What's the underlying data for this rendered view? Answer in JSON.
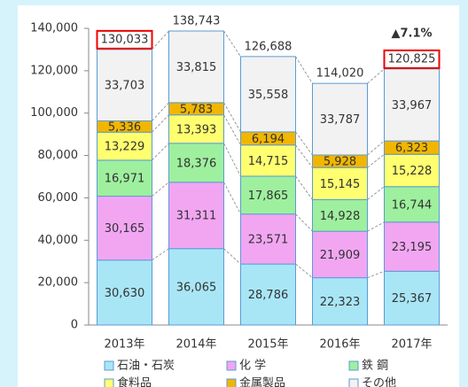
{
  "chart_data": {
    "type": "stacked-bar",
    "categories": [
      "2013年",
      "2014年",
      "2015年",
      "2016年",
      "2017年"
    ],
    "series": [
      {
        "name": "石油・石炭",
        "color": "#a8e6f6",
        "values": [
          30630,
          36065,
          28786,
          22323,
          25367
        ],
        "value_labels": [
          "30,630",
          "36,065",
          "28,786",
          "22,323",
          "25,367"
        ]
      },
      {
        "name": "化 学",
        "color": "#f2a6f2",
        "values": [
          30165,
          31311,
          23571,
          21909,
          23195
        ],
        "value_labels": [
          "30,165",
          "31,311",
          "23,571",
          "21,909",
          "23,195"
        ]
      },
      {
        "name": "鉄 鋼",
        "color": "#9ef09e",
        "values": [
          16971,
          18376,
          17865,
          14928,
          16744
        ],
        "value_labels": [
          "16,971",
          "18,376",
          "17,865",
          "14,928",
          "16,744"
        ]
      },
      {
        "name": "食料品",
        "color": "#ffff70",
        "values": [
          13229,
          13393,
          14715,
          15145,
          15228
        ],
        "value_labels": [
          "13,229",
          "13,393",
          "14,715",
          "15,145",
          "15,228"
        ]
      },
      {
        "name": "金属製品",
        "color": "#f2b600",
        "values": [
          5336,
          5783,
          6194,
          5928,
          6323
        ],
        "value_labels": [
          "5,336",
          "5,783",
          "6,194",
          "5,928",
          "6,323"
        ]
      },
      {
        "name": "その他",
        "color": "#f2f2f2",
        "values": [
          33703,
          33815,
          35558,
          33787,
          33967
        ],
        "value_labels": [
          "33,703",
          "33,815",
          "35,558",
          "33,787",
          "33,967"
        ]
      }
    ],
    "totals": [
      130033,
      138743,
      126688,
      114020,
      120825
    ],
    "total_labels": [
      "130,033",
      "138,743",
      "126,688",
      "114,020",
      "120,825"
    ],
    "total_boxed": [
      true,
      false,
      false,
      false,
      true
    ],
    "annotation": "▲7.1%",
    "ylim": [
      0,
      140000
    ],
    "yticks": [
      0,
      {
        "value": 20000,
        "label": "20,000"
      },
      {
        "value": 40000,
        "label": "40,000"
      },
      {
        "value": 60000,
        "label": "60,000"
      },
      {
        "value": 80000,
        "label": "80,000"
      },
      {
        "value": 100000,
        "label": "100,000"
      },
      {
        "value": 120000,
        "label": "120,000"
      },
      {
        "value": 140000,
        "label": "140,000"
      }
    ]
  }
}
